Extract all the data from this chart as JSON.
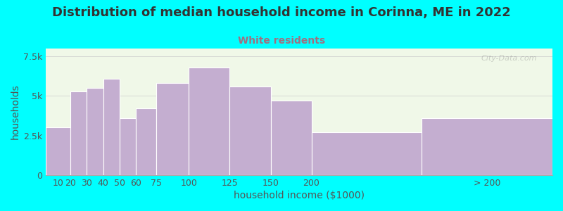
{
  "title": "Distribution of median household income in Corinna, ME in 2022",
  "subtitle": "White residents",
  "xlabel": "household income ($1000)",
  "ylabel": "households",
  "background_outer": "#00FFFF",
  "bar_color": "#c4aed0",
  "bar_edge_color": "#ffffff",
  "categories": [
    "10",
    "20",
    "30",
    "40",
    "50",
    "60",
    "75",
    "100",
    "125",
    "150",
    "200",
    "> 200"
  ],
  "bin_edges": [
    0,
    15,
    25,
    35,
    45,
    55,
    67.5,
    87.5,
    112.5,
    137.5,
    162.5,
    230,
    310
  ],
  "values": [
    3000,
    5300,
    5500,
    6100,
    3600,
    4200,
    5800,
    6800,
    5600,
    4700,
    2700,
    3600
  ],
  "ylim": [
    0,
    8000
  ],
  "yticks": [
    0,
    2500,
    5000,
    7500
  ],
  "ytick_labels": [
    "0",
    "2.5k",
    "5k",
    "7.5k"
  ],
  "title_fontsize": 13,
  "subtitle_fontsize": 10,
  "subtitle_color": "#a07080",
  "axis_label_fontsize": 10,
  "tick_fontsize": 9,
  "watermark_text": "① City-Data.com",
  "plot_bg_left": "#e8f5e0",
  "plot_bg_right": "#ffffff"
}
